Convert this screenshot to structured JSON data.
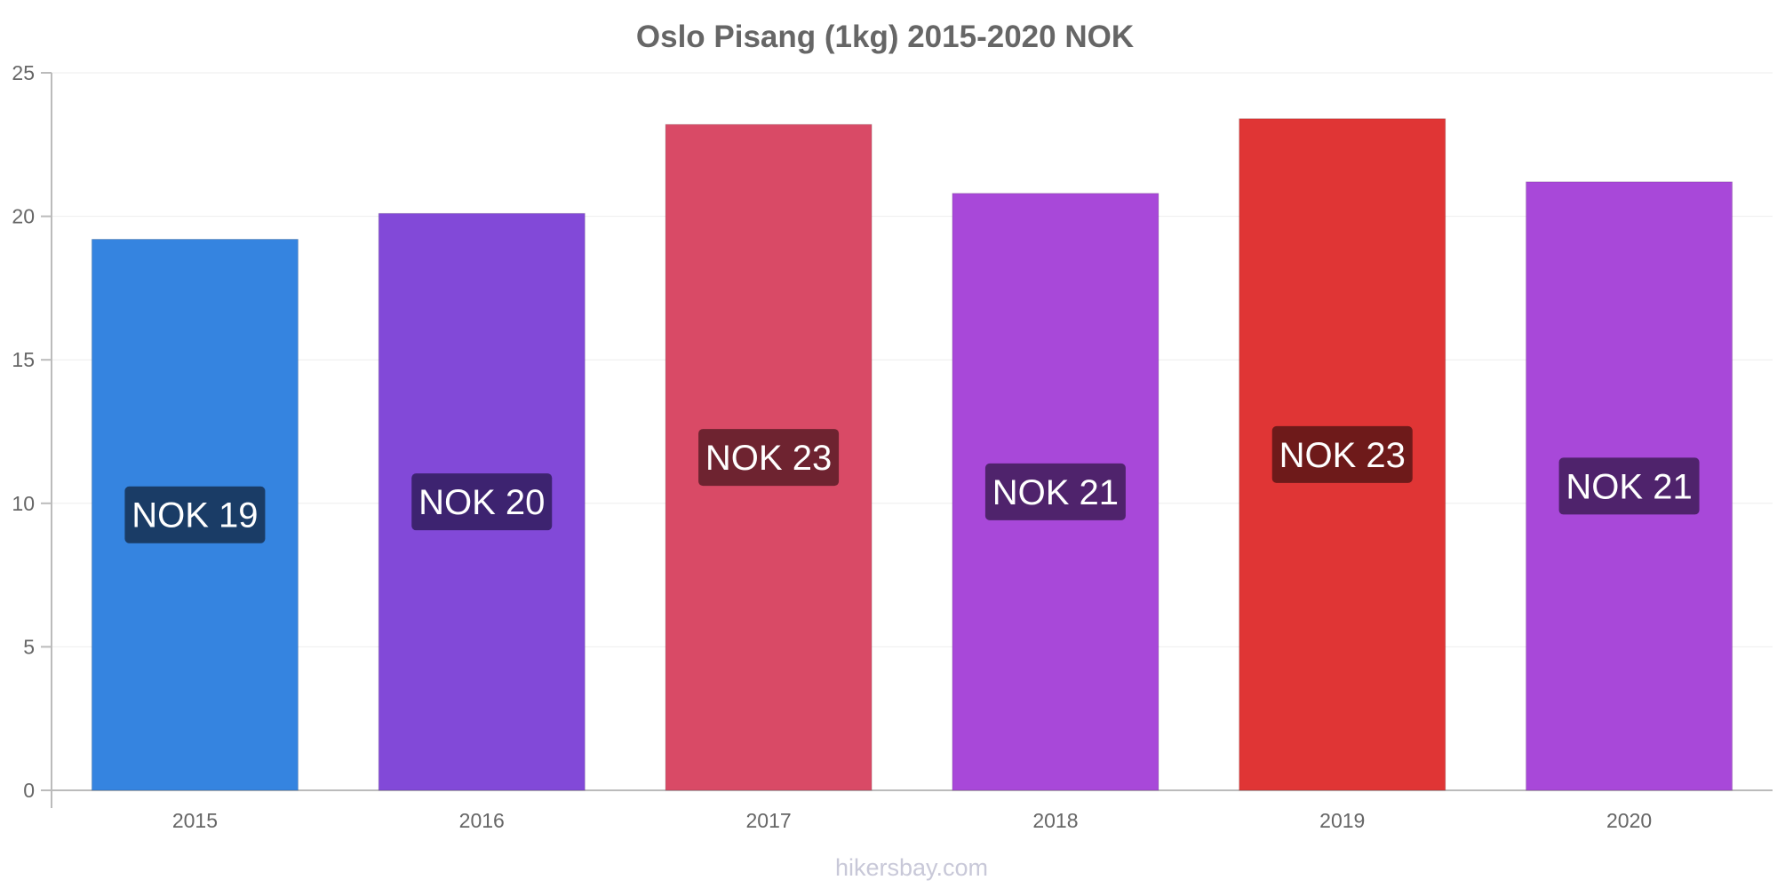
{
  "chart_data": {
    "type": "bar",
    "title": "Oslo Pisang (1kg) 2015-2020 NOK",
    "categories": [
      "2015",
      "2016",
      "2017",
      "2018",
      "2019",
      "2020"
    ],
    "values": [
      19.2,
      20.1,
      23.2,
      20.8,
      23.4,
      21.2
    ],
    "data_labels": [
      "NOK 19",
      "NOK 20",
      "NOK 23",
      "NOK 21",
      "NOK 23",
      "NOK 21"
    ],
    "colors": [
      "#3584e0",
      "#8249d8",
      "#d94a66",
      "#a848d9",
      "#e03535",
      "#a848d9"
    ],
    "label_colors": [
      "#1a3c66",
      "#3d2370",
      "#6e2330",
      "#4f236c",
      "#6e1a1a",
      "#4f236c"
    ],
    "yticks": [
      "0",
      "5",
      "10",
      "15",
      "20",
      "25"
    ],
    "ylim": [
      0,
      25
    ],
    "xlabel": "",
    "ylabel": "",
    "grid": true,
    "legend": "none"
  },
  "credit": "hikersbay.com"
}
